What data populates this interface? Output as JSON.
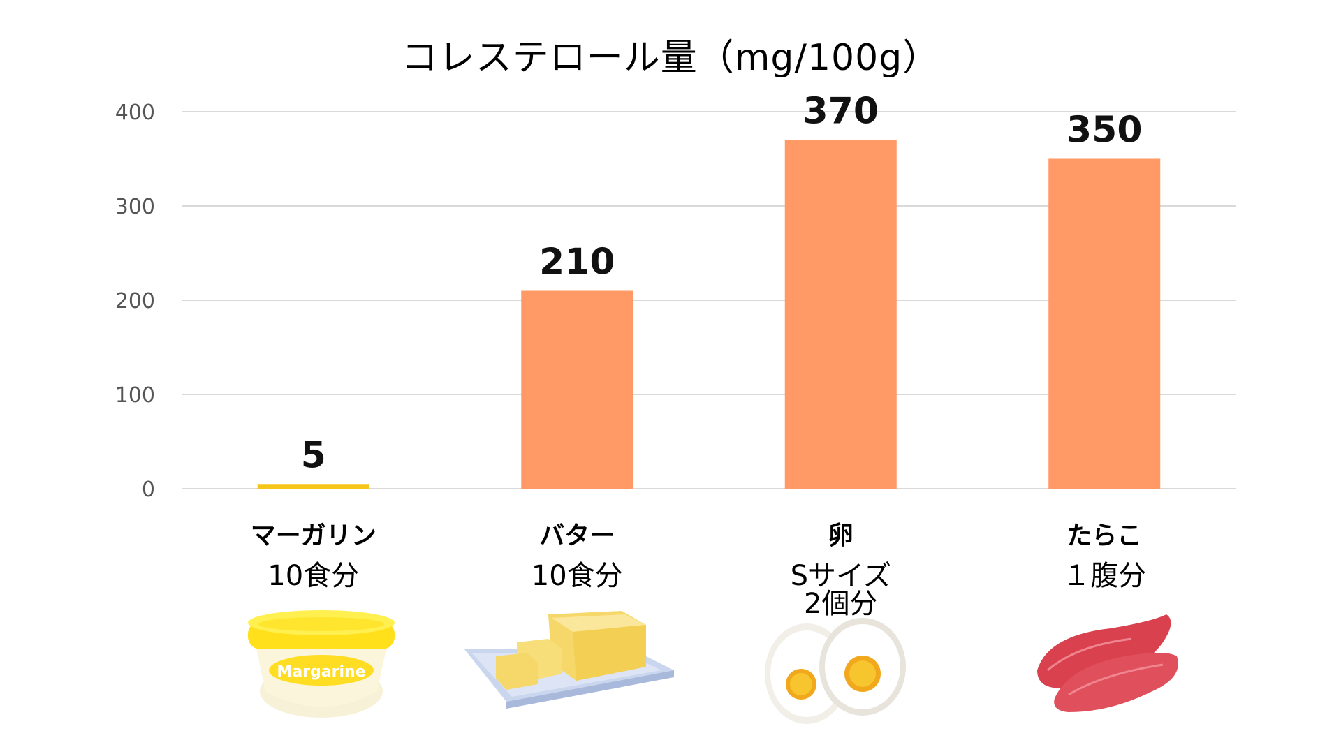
{
  "chart_data": {
    "type": "bar",
    "title": "コレステロール量（mg/100g）",
    "xlabel": "",
    "ylabel": "",
    "ylim": [
      0,
      400
    ],
    "yticks": [
      0,
      100,
      200,
      300,
      400
    ],
    "grid": true,
    "categories": [
      "マーガリン",
      "バター",
      "卵",
      "たらこ"
    ],
    "category_notes": [
      "10食分",
      "10食分",
      "Sサイズ\n2個分",
      "１腹分"
    ],
    "values": [
      5,
      210,
      370,
      350
    ],
    "data_labels": [
      "5",
      "210",
      "370",
      "350"
    ],
    "bar_colors": [
      "#F5C518",
      "#FF9966",
      "#FF9966",
      "#FF9966"
    ],
    "gridline_color": "#D9D9D9"
  },
  "illustrations": [
    {
      "icon": "margarine-tub-icon",
      "label": "Margarine"
    },
    {
      "icon": "butter-icon"
    },
    {
      "icon": "boiled-egg-icon"
    },
    {
      "icon": "tarako-icon"
    }
  ]
}
